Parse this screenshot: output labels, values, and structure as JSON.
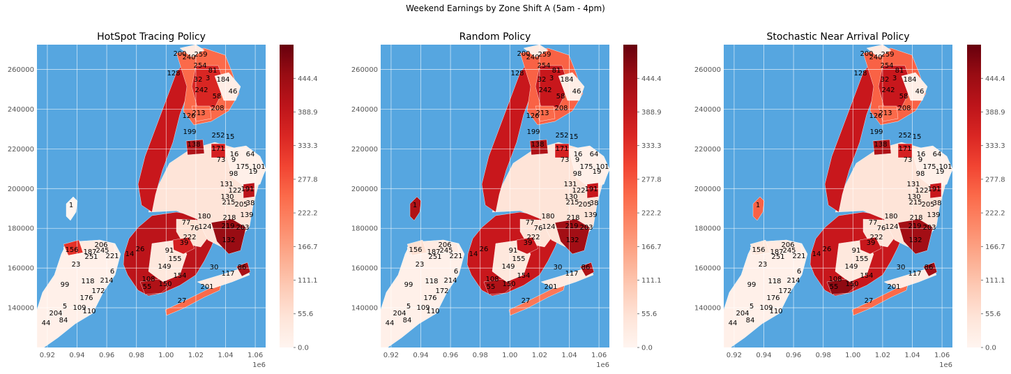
{
  "suptitle": "Weekend Earnings by Zone Shift A (5am - 4pm)",
  "chart_data": [
    {
      "type": "choropleth",
      "title": "HotSpot Tracing Policy",
      "colormap": "Reds",
      "colorbar": {
        "min": 0.0,
        "max": 500.0,
        "ticks": [
          "0.0",
          "55.6",
          "111.1",
          "166.7",
          "222.2",
          "277.8",
          "333.3",
          "388.9",
          "444.4"
        ]
      },
      "x_ticks": [
        "0.92",
        "0.94",
        "0.96",
        "0.98",
        "1.00",
        "1.02",
        "1.04",
        "1.06"
      ],
      "x_offset_label": "1e6",
      "y_ticks": [
        "140000",
        "160000",
        "180000",
        "200000",
        "220000",
        "240000",
        "260000"
      ],
      "xlim": [
        913000.0,
        1067000.0
      ],
      "ylim": [
        120000,
        272500
      ],
      "zones": [
        {
          "id": "1",
          "value": 0
        },
        {
          "id": "23",
          "value": 20
        },
        {
          "id": "44",
          "value": 10
        },
        {
          "id": "84",
          "value": 15
        },
        {
          "id": "99",
          "value": 10
        },
        {
          "id": "109",
          "value": 10
        },
        {
          "id": "110",
          "value": 10
        },
        {
          "id": "118",
          "value": 15
        },
        {
          "id": "156",
          "value": 330
        },
        {
          "id": "187",
          "value": 25
        },
        {
          "id": "206",
          "value": 60
        },
        {
          "id": "245",
          "value": 30
        },
        {
          "id": "251",
          "value": 20
        },
        {
          "id": "221",
          "value": 30
        },
        {
          "id": "6",
          "value": 15
        },
        {
          "id": "214",
          "value": 10
        },
        {
          "id": "172",
          "value": 10
        },
        {
          "id": "176",
          "value": 10
        },
        {
          "id": "204",
          "value": 10
        },
        {
          "id": "5",
          "value": 10
        },
        {
          "id": "27",
          "value": 250
        },
        {
          "id": "201",
          "value": 30
        },
        {
          "id": "117",
          "value": 40
        },
        {
          "id": "86",
          "value": 430
        },
        {
          "id": "30",
          "value": 15
        },
        {
          "id": "132",
          "value": 450
        },
        {
          "id": "124",
          "value": 20
        },
        {
          "id": "39",
          "value": 360
        },
        {
          "id": "222",
          "value": 50
        },
        {
          "id": "155",
          "value": 20
        },
        {
          "id": "149",
          "value": 60
        },
        {
          "id": "154",
          "value": 30
        },
        {
          "id": "150",
          "value": 420
        },
        {
          "id": "108",
          "value": 380
        },
        {
          "id": "55",
          "value": 420
        },
        {
          "id": "91",
          "value": 40
        },
        {
          "id": "14",
          "value": 420
        },
        {
          "id": "26",
          "value": 400
        },
        {
          "id": "76",
          "value": 30
        },
        {
          "id": "77",
          "value": 60
        },
        {
          "id": "180",
          "value": 20
        },
        {
          "id": "203",
          "value": 20
        },
        {
          "id": "219",
          "value": 10
        },
        {
          "id": "218",
          "value": 15
        },
        {
          "id": "139",
          "value": 15
        },
        {
          "id": "205",
          "value": 30
        },
        {
          "id": "38",
          "value": 15
        },
        {
          "id": "215",
          "value": 40
        },
        {
          "id": "130",
          "value": 50
        },
        {
          "id": "131",
          "value": 30
        },
        {
          "id": "191",
          "value": 400
        },
        {
          "id": "122",
          "value": 30
        },
        {
          "id": "98",
          "value": 10
        },
        {
          "id": "175",
          "value": 10
        },
        {
          "id": "101",
          "value": 10
        },
        {
          "id": "19",
          "value": 15
        },
        {
          "id": "64",
          "value": 15
        },
        {
          "id": "16",
          "value": 20
        },
        {
          "id": "9",
          "value": 30
        },
        {
          "id": "73",
          "value": 40
        },
        {
          "id": "15",
          "value": 10
        },
        {
          "id": "252",
          "value": 20
        },
        {
          "id": "171",
          "value": 360
        },
        {
          "id": "138",
          "value": 420
        },
        {
          "id": "208",
          "value": 20
        },
        {
          "id": "58",
          "value": 15
        },
        {
          "id": "46",
          "value": 20
        },
        {
          "id": "184",
          "value": 15
        },
        {
          "id": "32",
          "value": 20
        },
        {
          "id": "3",
          "value": 15
        },
        {
          "id": "81",
          "value": 350
        },
        {
          "id": "254",
          "value": 30
        },
        {
          "id": "259",
          "value": 350
        },
        {
          "id": "240",
          "value": 250
        },
        {
          "id": "200",
          "value": 30
        },
        {
          "id": "242",
          "value": 30
        },
        {
          "id": "128",
          "value": 40
        },
        {
          "id": "213",
          "value": 250
        },
        {
          "id": "126",
          "value": 20
        },
        {
          "id": "199",
          "value": 20
        }
      ]
    },
    {
      "type": "choropleth",
      "title": "Random Policy",
      "colormap": "Reds",
      "colorbar": {
        "min": 0.0,
        "max": 500.0,
        "ticks": [
          "0.0",
          "55.6",
          "111.1",
          "166.7",
          "222.2",
          "277.8",
          "333.3",
          "388.9",
          "444.4"
        ]
      },
      "x_ticks": [
        "0.92",
        "0.94",
        "0.96",
        "0.98",
        "1.00",
        "1.02",
        "1.04",
        "1.06"
      ],
      "x_offset_label": "1e6",
      "y_ticks": [
        "140000",
        "160000",
        "180000",
        "200000",
        "220000",
        "240000",
        "260000"
      ],
      "xlim": [
        913000.0,
        1067000.0
      ],
      "ylim": [
        120000,
        272500
      ],
      "zones": [
        {
          "id": "1",
          "value": 420
        },
        {
          "id": "23",
          "value": 15
        },
        {
          "id": "44",
          "value": 10
        },
        {
          "id": "84",
          "value": 10
        },
        {
          "id": "99",
          "value": 10
        },
        {
          "id": "109",
          "value": 10
        },
        {
          "id": "110",
          "value": 10
        },
        {
          "id": "118",
          "value": 10
        },
        {
          "id": "156",
          "value": 60
        },
        {
          "id": "187",
          "value": 20
        },
        {
          "id": "206",
          "value": 60
        },
        {
          "id": "245",
          "value": 30
        },
        {
          "id": "251",
          "value": 20
        },
        {
          "id": "221",
          "value": 30
        },
        {
          "id": "6",
          "value": 10
        },
        {
          "id": "214",
          "value": 10
        },
        {
          "id": "172",
          "value": 10
        },
        {
          "id": "176",
          "value": 10
        },
        {
          "id": "204",
          "value": 10
        },
        {
          "id": "5",
          "value": 10
        },
        {
          "id": "27",
          "value": 230
        },
        {
          "id": "201",
          "value": 30
        },
        {
          "id": "117",
          "value": 40
        },
        {
          "id": "86",
          "value": 420
        },
        {
          "id": "30",
          "value": 15
        },
        {
          "id": "132",
          "value": 440
        },
        {
          "id": "124",
          "value": 20
        },
        {
          "id": "39",
          "value": 380
        },
        {
          "id": "222",
          "value": 40
        },
        {
          "id": "155",
          "value": 20
        },
        {
          "id": "149",
          "value": 60
        },
        {
          "id": "154",
          "value": 30
        },
        {
          "id": "150",
          "value": 380
        },
        {
          "id": "108",
          "value": 380
        },
        {
          "id": "55",
          "value": 420
        },
        {
          "id": "91",
          "value": 40
        },
        {
          "id": "14",
          "value": 420
        },
        {
          "id": "26",
          "value": 380
        },
        {
          "id": "76",
          "value": 30
        },
        {
          "id": "77",
          "value": 50
        },
        {
          "id": "180",
          "value": 20
        },
        {
          "id": "203",
          "value": 20
        },
        {
          "id": "219",
          "value": 10
        },
        {
          "id": "218",
          "value": 15
        },
        {
          "id": "139",
          "value": 15
        },
        {
          "id": "205",
          "value": 30
        },
        {
          "id": "38",
          "value": 15
        },
        {
          "id": "215",
          "value": 40
        },
        {
          "id": "130",
          "value": 50
        },
        {
          "id": "131",
          "value": 30
        },
        {
          "id": "191",
          "value": 380
        },
        {
          "id": "122",
          "value": 30
        },
        {
          "id": "98",
          "value": 10
        },
        {
          "id": "175",
          "value": 10
        },
        {
          "id": "101",
          "value": 10
        },
        {
          "id": "19",
          "value": 15
        },
        {
          "id": "64",
          "value": 15
        },
        {
          "id": "16",
          "value": 20
        },
        {
          "id": "9",
          "value": 30
        },
        {
          "id": "73",
          "value": 40
        },
        {
          "id": "15",
          "value": 10
        },
        {
          "id": "252",
          "value": 20
        },
        {
          "id": "171",
          "value": 360
        },
        {
          "id": "138",
          "value": 420
        },
        {
          "id": "208",
          "value": 20
        },
        {
          "id": "58",
          "value": 15
        },
        {
          "id": "46",
          "value": 20
        },
        {
          "id": "184",
          "value": 15
        },
        {
          "id": "32",
          "value": 20
        },
        {
          "id": "3",
          "value": 15
        },
        {
          "id": "81",
          "value": 350
        },
        {
          "id": "254",
          "value": 30
        },
        {
          "id": "259",
          "value": 380
        },
        {
          "id": "240",
          "value": 260
        },
        {
          "id": "200",
          "value": 30
        },
        {
          "id": "242",
          "value": 30
        },
        {
          "id": "128",
          "value": 40
        },
        {
          "id": "213",
          "value": 250
        },
        {
          "id": "126",
          "value": 20
        },
        {
          "id": "199",
          "value": 20
        }
      ]
    },
    {
      "type": "choropleth",
      "title": "Stochastic Near Arrival Policy",
      "colormap": "Reds",
      "colorbar": {
        "min": 0.0,
        "max": 500.0,
        "ticks": [
          "0.0",
          "55.6",
          "111.1",
          "166.7",
          "222.2",
          "277.8",
          "333.3",
          "388.9",
          "444.4"
        ]
      },
      "x_ticks": [
        "0.92",
        "0.94",
        "0.96",
        "0.98",
        "1.00",
        "1.02",
        "1.04",
        "1.06"
      ],
      "x_offset_label": "1e6",
      "y_ticks": [
        "140000",
        "160000",
        "180000",
        "200000",
        "220000",
        "240000",
        "260000"
      ],
      "xlim": [
        913000.0,
        1067000.0
      ],
      "ylim": [
        120000,
        272500
      ],
      "zones": [
        {
          "id": "1",
          "value": 260
        },
        {
          "id": "23",
          "value": 15
        },
        {
          "id": "44",
          "value": 10
        },
        {
          "id": "84",
          "value": 10
        },
        {
          "id": "99",
          "value": 10
        },
        {
          "id": "109",
          "value": 10
        },
        {
          "id": "110",
          "value": 10
        },
        {
          "id": "118",
          "value": 10
        },
        {
          "id": "156",
          "value": 40
        },
        {
          "id": "187",
          "value": 20
        },
        {
          "id": "206",
          "value": 60
        },
        {
          "id": "245",
          "value": 30
        },
        {
          "id": "251",
          "value": 20
        },
        {
          "id": "221",
          "value": 30
        },
        {
          "id": "6",
          "value": 10
        },
        {
          "id": "214",
          "value": 10
        },
        {
          "id": "172",
          "value": 10
        },
        {
          "id": "176",
          "value": 10
        },
        {
          "id": "204",
          "value": 10
        },
        {
          "id": "5",
          "value": 10
        },
        {
          "id": "27",
          "value": 250
        },
        {
          "id": "201",
          "value": 30
        },
        {
          "id": "117",
          "value": 40
        },
        {
          "id": "86",
          "value": 440
        },
        {
          "id": "30",
          "value": 15
        },
        {
          "id": "132",
          "value": 440
        },
        {
          "id": "124",
          "value": 20
        },
        {
          "id": "39",
          "value": 380
        },
        {
          "id": "222",
          "value": 40
        },
        {
          "id": "155",
          "value": 20
        },
        {
          "id": "149",
          "value": 60
        },
        {
          "id": "154",
          "value": 30
        },
        {
          "id": "150",
          "value": 420
        },
        {
          "id": "108",
          "value": 440
        },
        {
          "id": "55",
          "value": 460
        },
        {
          "id": "91",
          "value": 40
        },
        {
          "id": "14",
          "value": 440
        },
        {
          "id": "26",
          "value": 380
        },
        {
          "id": "76",
          "value": 30
        },
        {
          "id": "77",
          "value": 50
        },
        {
          "id": "180",
          "value": 20
        },
        {
          "id": "203",
          "value": 20
        },
        {
          "id": "219",
          "value": 10
        },
        {
          "id": "218",
          "value": 15
        },
        {
          "id": "139",
          "value": 15
        },
        {
          "id": "205",
          "value": 30
        },
        {
          "id": "38",
          "value": 15
        },
        {
          "id": "215",
          "value": 40
        },
        {
          "id": "130",
          "value": 50
        },
        {
          "id": "131",
          "value": 30
        },
        {
          "id": "191",
          "value": 380
        },
        {
          "id": "122",
          "value": 30
        },
        {
          "id": "98",
          "value": 10
        },
        {
          "id": "175",
          "value": 10
        },
        {
          "id": "101",
          "value": 10
        },
        {
          "id": "19",
          "value": 15
        },
        {
          "id": "64",
          "value": 15
        },
        {
          "id": "16",
          "value": 20
        },
        {
          "id": "9",
          "value": 30
        },
        {
          "id": "73",
          "value": 40
        },
        {
          "id": "15",
          "value": 10
        },
        {
          "id": "252",
          "value": 20
        },
        {
          "id": "171",
          "value": 360
        },
        {
          "id": "138",
          "value": 420
        },
        {
          "id": "208",
          "value": 20
        },
        {
          "id": "58",
          "value": 15
        },
        {
          "id": "46",
          "value": 20
        },
        {
          "id": "184",
          "value": 15
        },
        {
          "id": "32",
          "value": 20
        },
        {
          "id": "3",
          "value": 15
        },
        {
          "id": "81",
          "value": 350
        },
        {
          "id": "254",
          "value": 30
        },
        {
          "id": "259",
          "value": 380
        },
        {
          "id": "240",
          "value": 260
        },
        {
          "id": "200",
          "value": 30
        },
        {
          "id": "242",
          "value": 30
        },
        {
          "id": "128",
          "value": 40
        },
        {
          "id": "213",
          "value": 250
        },
        {
          "id": "126",
          "value": 20
        },
        {
          "id": "199",
          "value": 20
        }
      ]
    }
  ],
  "colors": {
    "water": "#56a6e0",
    "grid": "#ffffff",
    "tick_text": "#555555"
  }
}
